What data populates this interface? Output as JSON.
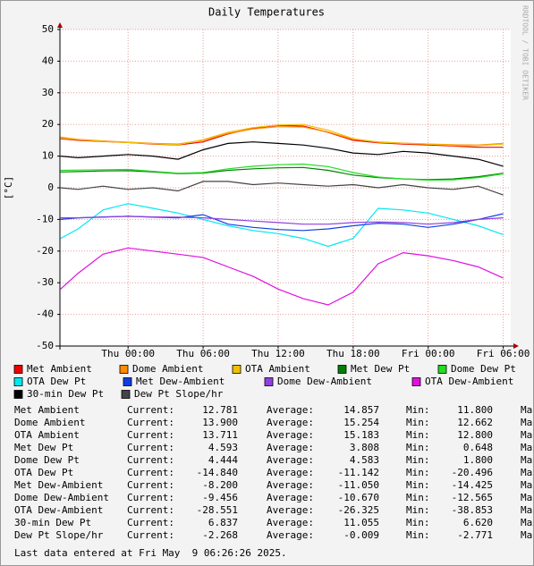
{
  "chart_data": {
    "type": "line",
    "title": "Daily Temperatures",
    "ylabel": "[°C]",
    "watermark": "RRDTOOL / TOBI OETIKER",
    "x": [
      -5.4,
      -4,
      -2,
      0,
      2,
      4,
      6,
      8,
      10,
      12,
      14,
      16,
      18,
      20,
      22,
      24,
      26,
      28,
      30
    ],
    "xlim": [
      -5.45,
      30.6
    ],
    "xticks": [
      {
        "value": 0,
        "label": "Thu 00:00"
      },
      {
        "value": 6,
        "label": "Thu 06:00"
      },
      {
        "value": 12,
        "label": "Thu 12:00"
      },
      {
        "value": 18,
        "label": "Thu 18:00"
      },
      {
        "value": 24,
        "label": "Fri 00:00"
      },
      {
        "value": 30,
        "label": "Fri 06:00"
      }
    ],
    "ylim": [
      -50,
      50
    ],
    "yticks": [
      50,
      40,
      30,
      20,
      10,
      0,
      -10,
      -20,
      -30,
      -40,
      -50
    ],
    "grid": true,
    "series": [
      {
        "name": "Met Ambient",
        "color": "#ee0000",
        "values": [
          15.5,
          15,
          14.6,
          14.3,
          13.8,
          13.5,
          14.5,
          17,
          18.8,
          19.7,
          19.5,
          17.5,
          15,
          14.2,
          13.8,
          13.5,
          13.2,
          12.8,
          12.8
        ]
      },
      {
        "name": "Dome Ambient",
        "color": "#ff8c00",
        "values": [
          16,
          15.3,
          14.8,
          14.4,
          14,
          13.8,
          15,
          17.2,
          18.6,
          19.3,
          19.2,
          17.6,
          15.3,
          14.5,
          14.1,
          13.8,
          13.6,
          13.5,
          14
        ]
      },
      {
        "name": "OTA Ambient",
        "color": "#f0c000",
        "values": [
          15.7,
          15.2,
          14.7,
          14.3,
          13.9,
          13.6,
          15.2,
          17.5,
          19,
          19.8,
          20,
          18.2,
          15.5,
          14.4,
          14,
          13.8,
          13.4,
          13.3,
          13.8
        ]
      },
      {
        "name": "Met Dew Pt",
        "color": "#008000",
        "values": [
          5,
          5.1,
          5.3,
          5.4,
          5,
          4.5,
          4.6,
          5.5,
          6,
          6.3,
          6.4,
          5.5,
          4,
          3.2,
          2.8,
          2.6,
          2.8,
          3.5,
          4.6
        ]
      },
      {
        "name": "Dome Dew Pt",
        "color": "#22dd22",
        "values": [
          5.5,
          5.6,
          5.7,
          5.8,
          5.2,
          4.6,
          4.8,
          6,
          6.8,
          7.3,
          7.5,
          6.7,
          4.8,
          3.4,
          2.8,
          2.4,
          2.5,
          3.2,
          4.4
        ]
      },
      {
        "name": "OTA Dew Pt",
        "color": "#00e8f0",
        "values": [
          -16,
          -13,
          -7,
          -5,
          -6.5,
          -8,
          -10,
          -12,
          -13.5,
          -14.5,
          -16,
          -18.5,
          -16,
          -6.5,
          -7,
          -8,
          -10,
          -12,
          -14.8
        ]
      },
      {
        "name": "Met Dew-Ambient",
        "color": "#1040e0",
        "values": [
          -10,
          -9.5,
          -9.2,
          -9,
          -9.3,
          -9.5,
          -8.5,
          -11.5,
          -12.5,
          -13.2,
          -13.5,
          -13,
          -12,
          -11.2,
          -11.5,
          -12.5,
          -11.5,
          -10,
          -8.2
        ]
      },
      {
        "name": "Dome Dew-Ambient",
        "color": "#9040e0",
        "values": [
          -9.5,
          -9.5,
          -9.3,
          -9,
          -9.2,
          -9.3,
          -9.5,
          -10,
          -10.5,
          -11,
          -11.5,
          -11.5,
          -11,
          -10.8,
          -11,
          -11.5,
          -11,
          -10,
          -9.5
        ]
      },
      {
        "name": "OTA Dew-Ambient",
        "color": "#e010e0",
        "values": [
          -32,
          -27,
          -21,
          -19,
          -20,
          -21,
          -22,
          -25,
          -28,
          -32,
          -35,
          -37,
          -33,
          -24,
          -20.5,
          -21.5,
          -23,
          -25,
          -28.5
        ]
      },
      {
        "name": "30-min Dew Pt",
        "color": "#000000",
        "values": [
          10,
          9.5,
          10,
          10.5,
          10,
          9,
          12,
          14,
          14.5,
          14,
          13.5,
          12.5,
          11,
          10.5,
          11.5,
          11,
          10,
          9,
          6.8
        ]
      },
      {
        "name": "Dew Pt Slope/hr",
        "color": "#444444",
        "values": [
          0,
          -0.5,
          0.5,
          -0.5,
          0,
          -1,
          2,
          2,
          1,
          1.5,
          1,
          0.5,
          1,
          0,
          1,
          0,
          -0.5,
          0.5,
          -2.3
        ]
      }
    ]
  },
  "stats": {
    "labels": {
      "current": "Current:",
      "average": "Average:",
      "min": "Min:",
      "max": "Ma"
    },
    "rows": [
      {
        "name": "Met Ambient",
        "current": "12.781",
        "average": "14.857",
        "min": "11.800"
      },
      {
        "name": "Dome Ambient",
        "current": "13.900",
        "average": "15.254",
        "min": "12.662"
      },
      {
        "name": "OTA Ambient",
        "current": "13.711",
        "average": "15.183",
        "min": "12.800"
      },
      {
        "name": "Met Dew Pt",
        "current": "4.593",
        "average": "3.808",
        "min": "0.648"
      },
      {
        "name": "Dome Dew Pt",
        "current": "4.444",
        "average": "4.583",
        "min": "1.800"
      },
      {
        "name": "OTA Dew Pt",
        "current": "-14.840",
        "average": "-11.142",
        "min": "-20.496"
      },
      {
        "name": "Met Dew-Ambient",
        "current": "-8.200",
        "average": "-11.050",
        "min": "-14.425"
      },
      {
        "name": "Dome Dew-Ambient",
        "current": "-9.456",
        "average": "-10.670",
        "min": "-12.565"
      },
      {
        "name": "OTA Dew-Ambient",
        "current": "-28.551",
        "average": "-26.325",
        "min": "-38.853"
      },
      {
        "name": "30-min Dew Pt",
        "current": "6.837",
        "average": "11.055",
        "min": "6.620"
      },
      {
        "name": "Dew Pt Slope/hr",
        "current": "-2.268",
        "average": "-0.009",
        "min": "-2.771"
      }
    ]
  },
  "footer": "Last data entered at Fri May  9 06:26:26 2025."
}
